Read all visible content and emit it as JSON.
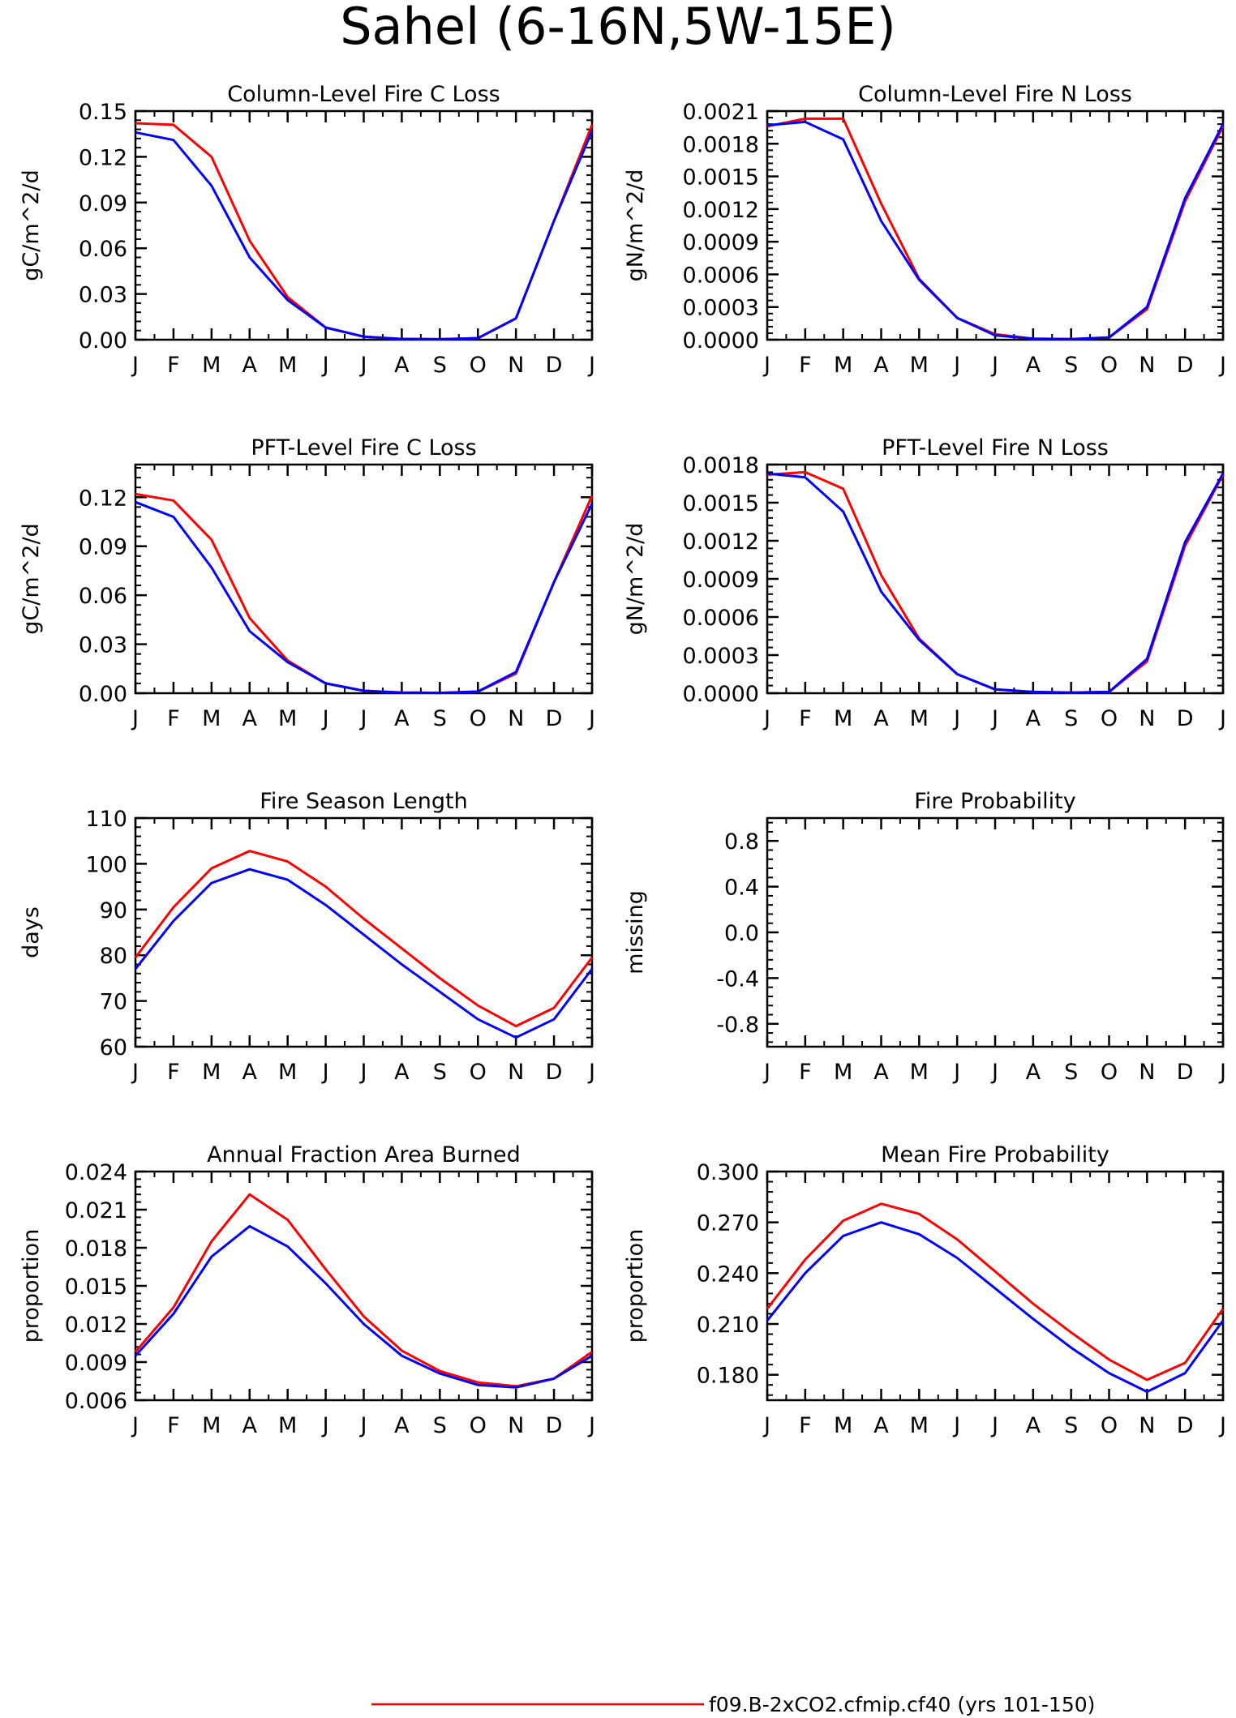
{
  "figure": {
    "title": "Sahel (6-16N,5W-15E)",
    "legend": {
      "label": "f09.B-2xCO2.cfmip.cf40 (yrs 101-150)",
      "color": "#ff0000"
    },
    "colors": {
      "red": "#ff0000",
      "blue": "#0000ff"
    }
  },
  "chart_data": [
    {
      "type": "line",
      "title": "Column-Level Fire C Loss",
      "ylabel": "gC/m^2/d",
      "categories": [
        "J",
        "F",
        "M",
        "A",
        "M",
        "J",
        "J",
        "A",
        "S",
        "O",
        "N",
        "D",
        "J"
      ],
      "ylim": [
        0,
        0.15
      ],
      "yticks": [
        "0.00",
        "0.03",
        "0.06",
        "0.09",
        "0.12",
        "0.15"
      ],
      "series": [
        {
          "color": "#ff0000",
          "values": [
            0.142,
            0.141,
            0.12,
            0.065,
            0.028,
            0.008,
            0.002,
            0.0005,
            0.0003,
            0.001,
            0.014,
            0.078,
            0.141
          ]
        },
        {
          "color": "#0000ff",
          "values": [
            0.136,
            0.131,
            0.101,
            0.054,
            0.026,
            0.008,
            0.002,
            0.0005,
            0.0003,
            0.001,
            0.014,
            0.078,
            0.137
          ]
        }
      ]
    },
    {
      "type": "line",
      "title": "Column-Level Fire N Loss",
      "ylabel": "gN/m^2/d",
      "categories": [
        "J",
        "F",
        "M",
        "A",
        "M",
        "J",
        "J",
        "A",
        "S",
        "O",
        "N",
        "D",
        "J"
      ],
      "ylim": [
        0,
        0.0021
      ],
      "yticks": [
        "0.0000",
        "0.0003",
        "0.0006",
        "0.0009",
        "0.0012",
        "0.0015",
        "0.0018",
        "0.0021"
      ],
      "series": [
        {
          "color": "#ff0000",
          "values": [
            0.00196,
            0.00203,
            0.00203,
            0.00125,
            0.00056,
            0.0002,
            5e-05,
            1e-05,
            5e-06,
            2e-05,
            0.00028,
            0.00127,
            0.00196
          ]
        },
        {
          "color": "#0000ff",
          "values": [
            0.00197,
            0.002,
            0.00184,
            0.00109,
            0.00055,
            0.0002,
            4e-05,
            1e-05,
            5e-06,
            2e-05,
            0.0003,
            0.0013,
            0.00198
          ]
        }
      ]
    },
    {
      "type": "line",
      "title": "PFT-Level Fire C Loss",
      "ylabel": "gC/m^2/d",
      "categories": [
        "J",
        "F",
        "M",
        "A",
        "M",
        "J",
        "J",
        "A",
        "S",
        "O",
        "N",
        "D",
        "J"
      ],
      "ylim": [
        0,
        0.14
      ],
      "yticks": [
        "0.00",
        "0.03",
        "0.06",
        "0.09",
        "0.12"
      ],
      "series": [
        {
          "color": "#ff0000",
          "values": [
            0.122,
            0.118,
            0.094,
            0.046,
            0.02,
            0.006,
            0.0015,
            0.0004,
            0.0002,
            0.001,
            0.012,
            0.068,
            0.121
          ]
        },
        {
          "color": "#0000ff",
          "values": [
            0.117,
            0.108,
            0.077,
            0.038,
            0.019,
            0.006,
            0.0015,
            0.0004,
            0.0002,
            0.001,
            0.013,
            0.068,
            0.116
          ]
        }
      ]
    },
    {
      "type": "line",
      "title": "PFT-Level Fire N Loss",
      "ylabel": "gN/m^2/d",
      "categories": [
        "J",
        "F",
        "M",
        "A",
        "M",
        "J",
        "J",
        "A",
        "S",
        "O",
        "N",
        "D",
        "J"
      ],
      "ylim": [
        0,
        0.0018
      ],
      "yticks": [
        "0.0000",
        "0.0003",
        "0.0006",
        "0.0009",
        "0.0012",
        "0.0015",
        "0.0018"
      ],
      "series": [
        {
          "color": "#ff0000",
          "values": [
            0.00172,
            0.00174,
            0.00161,
            0.00093,
            0.00043,
            0.00015,
            3e-05,
            1e-05,
            5e-06,
            1e-05,
            0.00025,
            0.00116,
            0.00172
          ]
        },
        {
          "color": "#0000ff",
          "values": [
            0.00173,
            0.0017,
            0.00143,
            0.0008,
            0.00042,
            0.00015,
            3e-05,
            1e-05,
            5e-06,
            1e-05,
            0.00027,
            0.00119,
            0.00173
          ]
        }
      ]
    },
    {
      "type": "line",
      "title": "Fire Season Length",
      "ylabel": "days",
      "categories": [
        "J",
        "F",
        "M",
        "A",
        "M",
        "J",
        "J",
        "A",
        "S",
        "O",
        "N",
        "D",
        "J"
      ],
      "ylim": [
        60,
        110
      ],
      "yticks": [
        "60",
        "70",
        "80",
        "90",
        "100",
        "110"
      ],
      "series": [
        {
          "color": "#ff0000",
          "values": [
            79.5,
            90.5,
            99,
            102.8,
            100.5,
            95,
            88,
            81.5,
            75,
            69,
            64.5,
            68.5,
            79.5
          ]
        },
        {
          "color": "#0000ff",
          "values": [
            77,
            87.5,
            95.8,
            98.8,
            96.5,
            91,
            84.5,
            78,
            72,
            66,
            62,
            66,
            77
          ]
        }
      ]
    },
    {
      "type": "line",
      "title": "Fire Probability",
      "ylabel": "missing",
      "categories": [
        "J",
        "F",
        "M",
        "A",
        "M",
        "J",
        "J",
        "A",
        "S",
        "O",
        "N",
        "D",
        "J"
      ],
      "ylim": [
        -1,
        1
      ],
      "yticks": [
        "-0.8",
        "-0.4",
        "0.0",
        "0.4",
        "0.8"
      ],
      "series": []
    },
    {
      "type": "line",
      "title": "Annual Fraction Area Burned",
      "ylabel": "proportion",
      "categories": [
        "J",
        "F",
        "M",
        "A",
        "M",
        "J",
        "J",
        "A",
        "S",
        "O",
        "N",
        "D",
        "J"
      ],
      "ylim": [
        0.006,
        0.024
      ],
      "yticks": [
        "0.006",
        "0.009",
        "0.012",
        "0.015",
        "0.018",
        "0.021",
        "0.024"
      ],
      "series": [
        {
          "color": "#ff0000",
          "values": [
            0.0098,
            0.0133,
            0.0185,
            0.0222,
            0.0202,
            0.0163,
            0.0126,
            0.0099,
            0.0083,
            0.0074,
            0.0071,
            0.0077,
            0.0098
          ]
        },
        {
          "color": "#0000ff",
          "values": [
            0.0095,
            0.0128,
            0.0173,
            0.0197,
            0.0181,
            0.0152,
            0.012,
            0.0095,
            0.0081,
            0.0072,
            0.007,
            0.0077,
            0.0095
          ]
        }
      ]
    },
    {
      "type": "line",
      "title": "Mean Fire Probability",
      "ylabel": "proportion",
      "categories": [
        "J",
        "F",
        "M",
        "A",
        "M",
        "J",
        "J",
        "A",
        "S",
        "O",
        "N",
        "D",
        "J"
      ],
      "ylim": [
        0.165,
        0.3
      ],
      "yticks": [
        "0.180",
        "0.210",
        "0.240",
        "0.270",
        "0.300"
      ],
      "series": [
        {
          "color": "#ff0000",
          "values": [
            0.219,
            0.248,
            0.271,
            0.281,
            0.275,
            0.26,
            0.241,
            0.222,
            0.205,
            0.189,
            0.177,
            0.187,
            0.219
          ]
        },
        {
          "color": "#0000ff",
          "values": [
            0.212,
            0.24,
            0.262,
            0.27,
            0.263,
            0.249,
            0.231,
            0.213,
            0.196,
            0.181,
            0.17,
            0.181,
            0.212
          ]
        }
      ]
    }
  ]
}
